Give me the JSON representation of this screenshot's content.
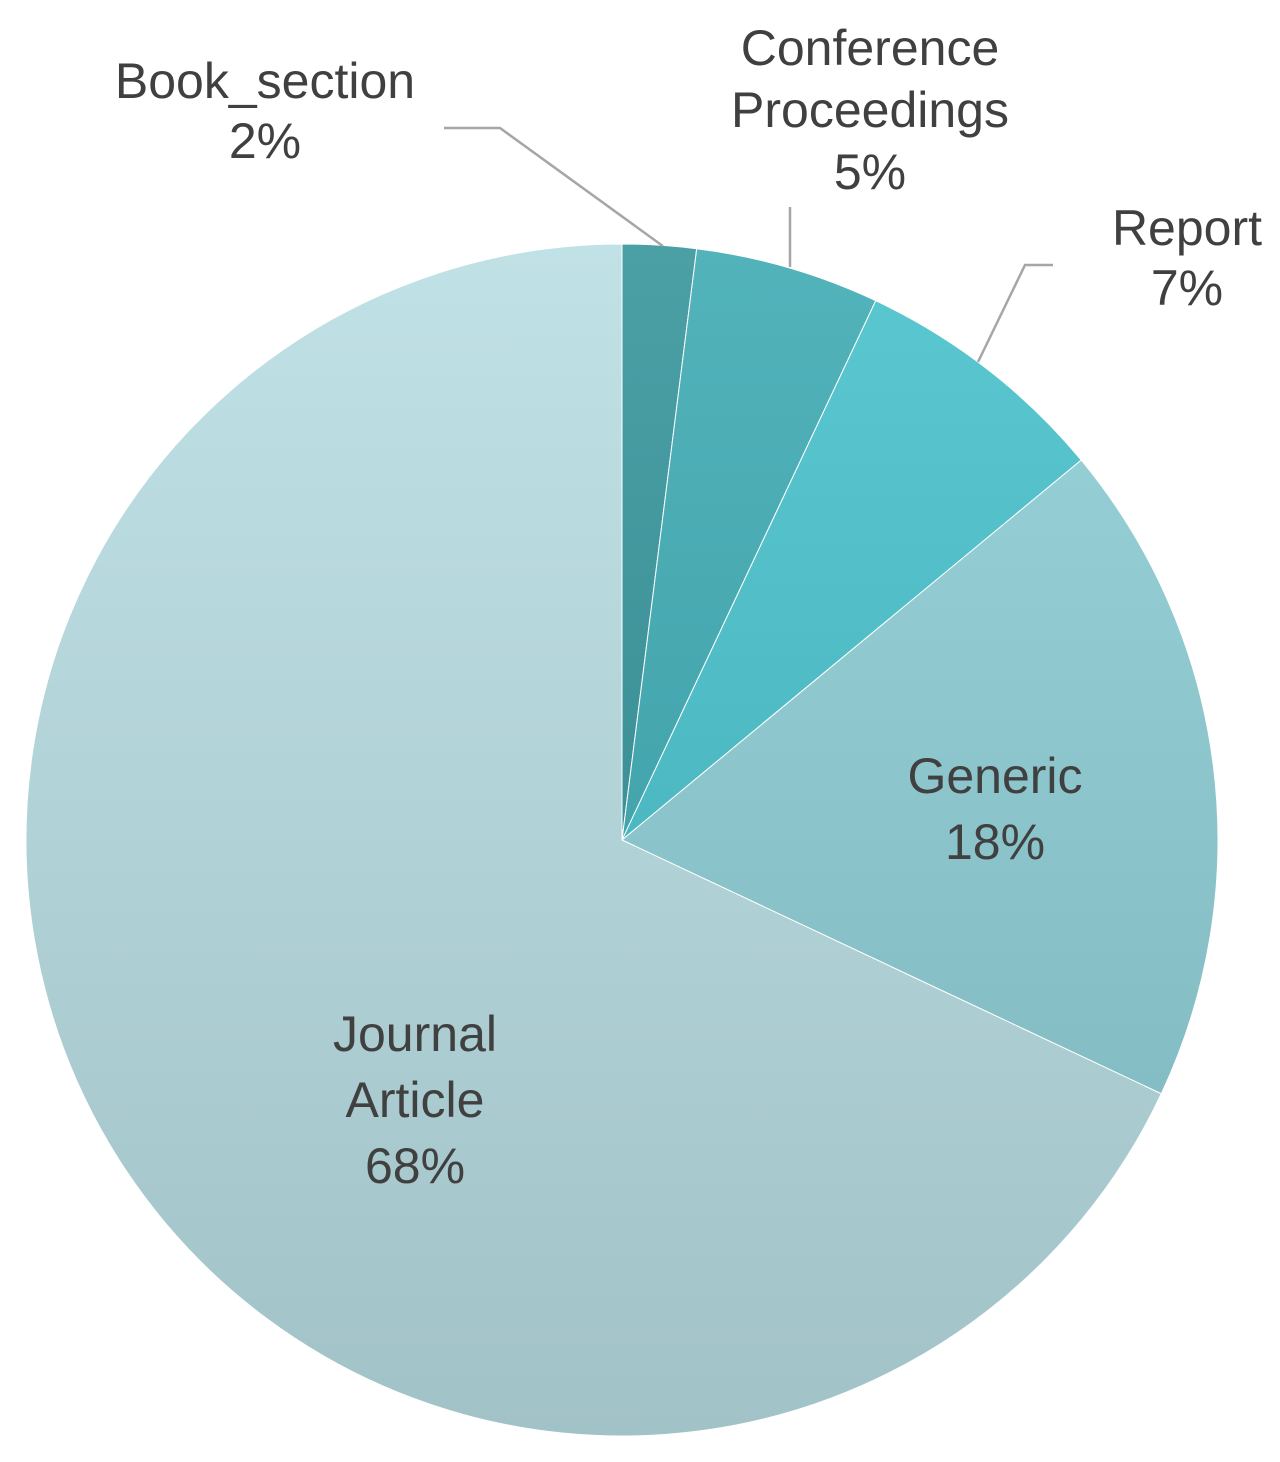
{
  "chart_data": {
    "type": "pie",
    "start_angle_deg": 0,
    "direction": "clockwise",
    "slices": [
      {
        "name": "Book_section",
        "label_lines": [
          "Book_section",
          "2%"
        ],
        "value": 2,
        "color": "#319399",
        "label_mode": "leader"
      },
      {
        "name": "Conference Proceedings",
        "label_lines": [
          "Conference",
          "Proceedings",
          "5%"
        ],
        "value": 5,
        "color": "#3aa9b2",
        "label_mode": "leader"
      },
      {
        "name": "Report",
        "label_lines": [
          "Report",
          "7%"
        ],
        "value": 7,
        "color": "#45c0cb",
        "label_mode": "leader"
      },
      {
        "name": "Generic",
        "label_lines": [
          "Generic",
          "18%"
        ],
        "value": 18,
        "color": "#8ccdd4",
        "label_mode": "inside"
      },
      {
        "name": "Journal Article",
        "label_lines": [
          "Journal",
          "Article",
          "68%"
        ],
        "value": 68,
        "color": "#b7dde2",
        "label_mode": "inside"
      }
    ]
  }
}
